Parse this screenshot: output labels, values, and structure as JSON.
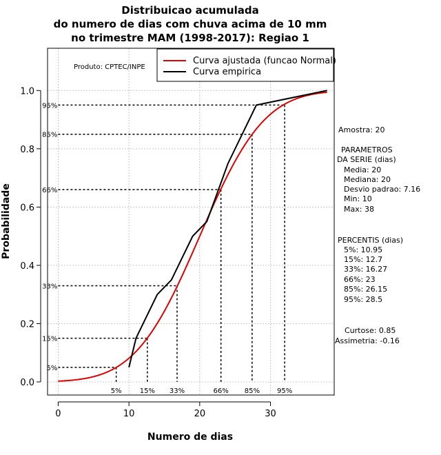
{
  "chart_data": {
    "type": "line",
    "title": [
      "Distribuicao acumulada",
      "do numero de dias com chuva acima de 10 mm",
      "no trimestre MAM (1998-2017): Regiao 1"
    ],
    "xlabel": "Numero de dias",
    "ylabel": "Probabilidade",
    "xlim": [
      -1.5,
      39
    ],
    "ylim": [
      -0.045,
      1.145
    ],
    "xticks": [
      0,
      10,
      20,
      30
    ],
    "yticks": [
      0.0,
      0.2,
      0.4,
      0.6,
      0.8,
      1.0
    ],
    "xtick_labels": [
      "0",
      "10",
      "20",
      "30"
    ],
    "ytick_labels": [
      "0.0",
      "0.2",
      "0.4",
      "0.6",
      "0.8",
      "1.0"
    ],
    "grid": true,
    "product_note": "Produto: CPTEC/INPE",
    "legend": [
      {
        "label": "Curva ajustada (funcao Normal)",
        "color": "#e00000"
      },
      {
        "label": "Curva empirica",
        "color": "#000000"
      }
    ],
    "series": [
      {
        "name": "Curva ajustada (funcao Normal)",
        "color": "#e00000",
        "distribution": "normal",
        "mean": 20,
        "sd": 7.16,
        "x_range": [
          0,
          38
        ]
      },
      {
        "name": "Curva empirica",
        "color": "#000000",
        "x": [
          10,
          11,
          12,
          13,
          14,
          16,
          19,
          21,
          24,
          26,
          27,
          28,
          38
        ],
        "y": [
          0.05,
          0.15,
          0.2,
          0.25,
          0.3,
          0.35,
          0.5,
          0.55,
          0.75,
          0.85,
          0.9,
          0.95,
          1.0
        ]
      }
    ],
    "percentiles": [
      {
        "label": "5%",
        "prob": 0.05,
        "value": 10.95,
        "xvline": 8.2
      },
      {
        "label": "15%",
        "prob": 0.15,
        "value": 12.7,
        "xvline": 12.6
      },
      {
        "label": "33%",
        "prob": 0.33,
        "value": 16.27,
        "xvline": 16.8
      },
      {
        "label": "66%",
        "prob": 0.66,
        "value": 23,
        "xvline": 23
      },
      {
        "label": "85%",
        "prob": 0.85,
        "value": 26.15,
        "xvline": 27.4
      },
      {
        "label": "95%",
        "prob": 0.95,
        "value": 28.5,
        "xvline": 32
      }
    ]
  },
  "side_panel": {
    "amostra": "Amostra: 20",
    "params_title": [
      "PARAMETROS",
      "DA SERIE (dias)"
    ],
    "params": [
      "Media: 20",
      "Mediana: 20",
      "Desvio padrao: 7.16",
      "Min: 10",
      "Max: 38"
    ],
    "percentis_title": "PERCENTIS (dias)",
    "percentis": [
      "5%: 10.95",
      "15%: 12.7",
      "33%: 16.27",
      "66%: 23",
      "85%: 26.15",
      "95%: 28.5"
    ],
    "curtose": "Curtose: 0.85",
    "assimetria": "Assimetria: -0.16"
  }
}
